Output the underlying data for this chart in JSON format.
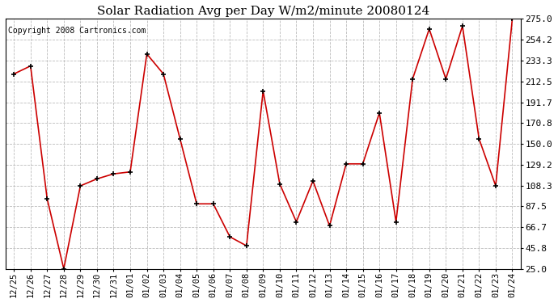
{
  "title": "Solar Radiation Avg per Day W/m2/minute 20080124",
  "copyright": "Copyright 2008 Cartronics.com",
  "x_labels": [
    "12/25",
    "12/26",
    "12/27",
    "12/28",
    "12/29",
    "12/30",
    "12/31",
    "01/01",
    "01/02",
    "01/03",
    "01/04",
    "01/05",
    "01/06",
    "01/07",
    "01/08",
    "01/09",
    "01/10",
    "01/11",
    "01/12",
    "01/13",
    "01/14",
    "01/15",
    "01/16",
    "01/17",
    "01/18",
    "01/19",
    "01/20",
    "01/21",
    "01/22",
    "01/23",
    "01/24"
  ],
  "y_values": [
    220,
    228,
    95,
    25,
    108,
    115,
    120,
    122,
    240,
    220,
    155,
    90,
    90,
    57,
    48,
    203,
    110,
    72,
    113,
    68,
    130,
    130,
    181,
    72,
    215,
    265,
    215,
    268,
    155,
    108,
    275
  ],
  "ylim": [
    25.0,
    275.0
  ],
  "yticks": [
    25.0,
    45.8,
    66.7,
    87.5,
    108.3,
    129.2,
    150.0,
    170.8,
    191.7,
    212.5,
    233.3,
    254.2,
    275.0
  ],
  "ytick_labels": [
    "25.0",
    "45.8",
    "66.7",
    "87.5",
    "108.3",
    "129.2",
    "150.0",
    "170.8",
    "191.7",
    "212.5",
    "233.3",
    "254.2",
    "275.0"
  ],
  "line_color": "#cc0000",
  "marker_color": "#000000",
  "bg_color": "#ffffff",
  "plot_bg_color": "#ffffff",
  "grid_color": "#bbbbbb",
  "title_fontsize": 11,
  "copyright_fontsize": 7,
  "tick_fontsize": 7.5,
  "ytick_fontsize": 8
}
